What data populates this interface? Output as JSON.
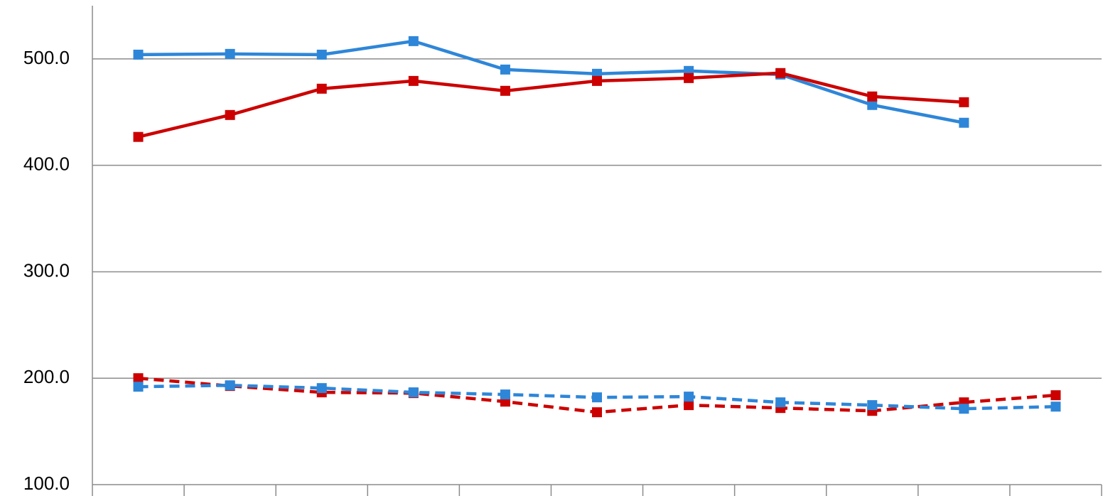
{
  "chart_data": {
    "type": "line",
    "categories": [
      null,
      null,
      null,
      null,
      null,
      null,
      null,
      null,
      null,
      null,
      null
    ],
    "series": [
      {
        "color": "#2e86d8",
        "dashed": false,
        "values": [
          504.0,
          504.7,
          504.0,
          516.7,
          490.0,
          486.0,
          488.7,
          485.3,
          456.7,
          440.0,
          null
        ]
      },
      {
        "color": "#cc0000",
        "dashed": false,
        "values": [
          426.7,
          447.3,
          472.0,
          479.3,
          470.0,
          479.3,
          482.0,
          486.7,
          464.7,
          459.3,
          null
        ]
      },
      {
        "color": "#cc0000",
        "dashed": true,
        "values": [
          200.0,
          192.7,
          186.7,
          186.0,
          178.0,
          168.0,
          174.7,
          172.0,
          169.3,
          177.3,
          184.0
        ]
      },
      {
        "color": "#2e86d8",
        "dashed": true,
        "values": [
          192.0,
          193.3,
          190.7,
          186.7,
          184.7,
          182.0,
          182.7,
          177.3,
          174.7,
          171.3,
          173.3
        ]
      }
    ],
    "ylim": [
      100,
      550
    ],
    "yticks": [
      {
        "value": 100,
        "label": "100.0"
      },
      {
        "value": 200,
        "label": "200.0"
      },
      {
        "value": 300,
        "label": "300.0"
      },
      {
        "value": 400,
        "label": "400.0"
      },
      {
        "value": 500,
        "label": "500.0"
      }
    ],
    "grid": true
  }
}
